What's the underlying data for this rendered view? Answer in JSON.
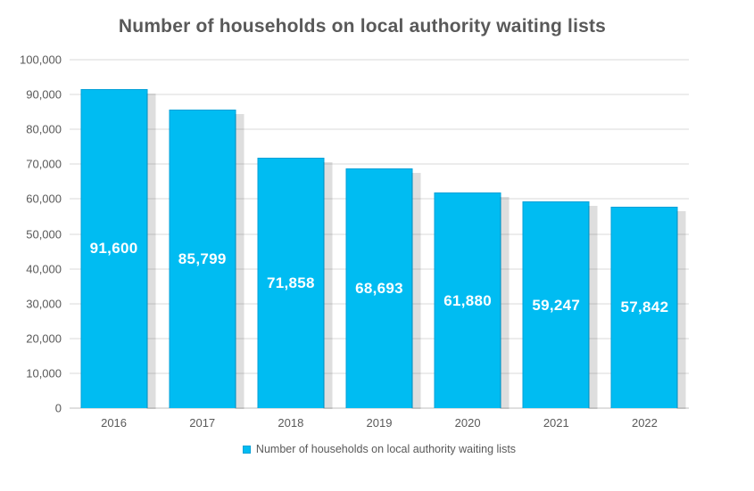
{
  "chart_data": {
    "type": "bar",
    "title": "Number of households on local authority waiting lists",
    "categories": [
      "2016",
      "2017",
      "2018",
      "2019",
      "2020",
      "2021",
      "2022"
    ],
    "values": [
      91600,
      85799,
      71858,
      68693,
      61880,
      59247,
      57842
    ],
    "value_labels": [
      "91,600",
      "85,799",
      "71,858",
      "68,693",
      "61,880",
      "59,247",
      "57,842"
    ],
    "xlabel": "",
    "ylabel": "",
    "ylim": [
      0,
      100000
    ],
    "grid": true,
    "yticks": [
      {
        "value": 0,
        "label": "0"
      },
      {
        "value": 10000,
        "label": "10,000"
      },
      {
        "value": 20000,
        "label": "20,000"
      },
      {
        "value": 30000,
        "label": "30,000"
      },
      {
        "value": 40000,
        "label": "40,000"
      },
      {
        "value": 50000,
        "label": "50,000"
      },
      {
        "value": 60000,
        "label": "60,000"
      },
      {
        "value": 70000,
        "label": "70,000"
      },
      {
        "value": 80000,
        "label": "80,000"
      },
      {
        "value": 90000,
        "label": "90,000"
      },
      {
        "value": 100000,
        "label": "100,000"
      }
    ],
    "legend": {
      "position": "bottom",
      "label": "Number of households on local authority waiting lists"
    },
    "colors": {
      "bar_fill": "#00BCF2",
      "bar_border": "#00A0D8",
      "grid": "#D9D9D9",
      "axis_line": "#BFBFBF",
      "text": "#595959",
      "value_label": "#FFFFFF",
      "shadow": "rgba(0,0,0,0.13)"
    }
  }
}
